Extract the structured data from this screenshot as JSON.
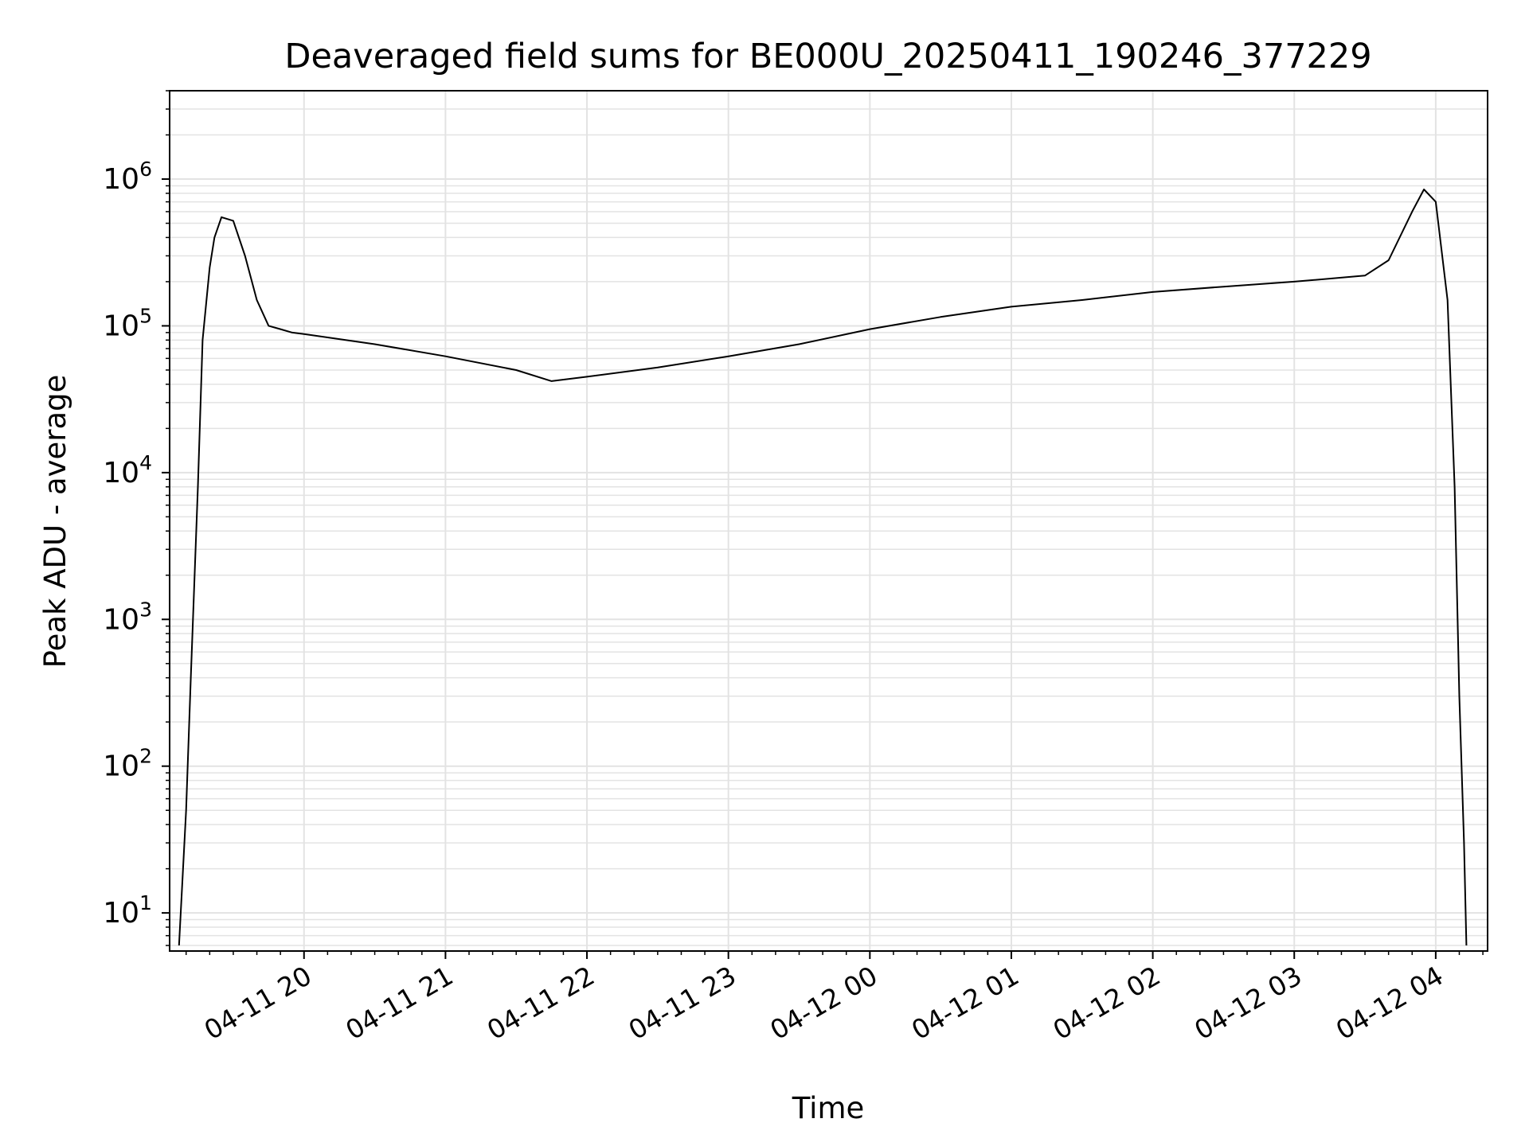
{
  "chart_data": {
    "type": "line",
    "title": "Deaveraged field sums for BE000U_20250411_190246_377229",
    "xlabel": "Time",
    "ylabel": "Peak ADU - average",
    "yscale": "log",
    "ylim": [
      5.5,
      4000000
    ],
    "xlim": [
      "2025-04-11 19:03:00",
      "2025-04-12 04:22:00"
    ],
    "grid": true,
    "x_ticks": [
      "04-11 20",
      "04-11 21",
      "04-11 22",
      "04-11 23",
      "04-12 00",
      "04-12 01",
      "04-12 02",
      "04-12 03",
      "04-12 04"
    ],
    "y_ticks": [
      {
        "base": "10",
        "exp": "1"
      },
      {
        "base": "10",
        "exp": "2"
      },
      {
        "base": "10",
        "exp": "3"
      },
      {
        "base": "10",
        "exp": "4"
      },
      {
        "base": "10",
        "exp": "5"
      },
      {
        "base": "10",
        "exp": "6"
      }
    ],
    "line_color": "#000000",
    "grid_color": "#e3e3e3",
    "series": [
      {
        "x": [
          "2025-04-11 19:07:00",
          "2025-04-11 19:10:00",
          "2025-04-11 19:12:00",
          "2025-04-11 19:15:00",
          "2025-04-11 19:17:00",
          "2025-04-11 19:20:00",
          "2025-04-11 19:22:00",
          "2025-04-11 19:25:00",
          "2025-04-11 19:30:00",
          "2025-04-11 19:35:00",
          "2025-04-11 19:40:00",
          "2025-04-11 19:45:00",
          "2025-04-11 19:50:00",
          "2025-04-11 19:55:00",
          "2025-04-11 20:00:00",
          "2025-04-11 20:30:00",
          "2025-04-11 21:00:00",
          "2025-04-11 21:30:00",
          "2025-04-11 21:45:00",
          "2025-04-11 22:00:00",
          "2025-04-11 22:30:00",
          "2025-04-11 23:00:00",
          "2025-04-11 23:30:00",
          "2025-04-12 00:00:00",
          "2025-04-12 00:30:00",
          "2025-04-12 01:00:00",
          "2025-04-12 01:30:00",
          "2025-04-12 02:00:00",
          "2025-04-12 02:30:00",
          "2025-04-12 03:00:00",
          "2025-04-12 03:30:00",
          "2025-04-12 03:40:00",
          "2025-04-12 03:50:00",
          "2025-04-12 03:55:00",
          "2025-04-12 04:00:00",
          "2025-04-12 04:05:00",
          "2025-04-12 04:08:00",
          "2025-04-12 04:10:00",
          "2025-04-12 04:12:00",
          "2025-04-12 04:13:00"
        ],
        "y": [
          6,
          50,
          400,
          8000,
          80000,
          250000,
          400000,
          550000,
          520000,
          300000,
          150000,
          100000,
          95000,
          90000,
          88000,
          75000,
          62000,
          50000,
          42000,
          45000,
          52000,
          62000,
          75000,
          95000,
          115000,
          135000,
          150000,
          170000,
          185000,
          200000,
          220000,
          280000,
          600000,
          850000,
          700000,
          150000,
          8000,
          300,
          30,
          6
        ]
      }
    ]
  }
}
